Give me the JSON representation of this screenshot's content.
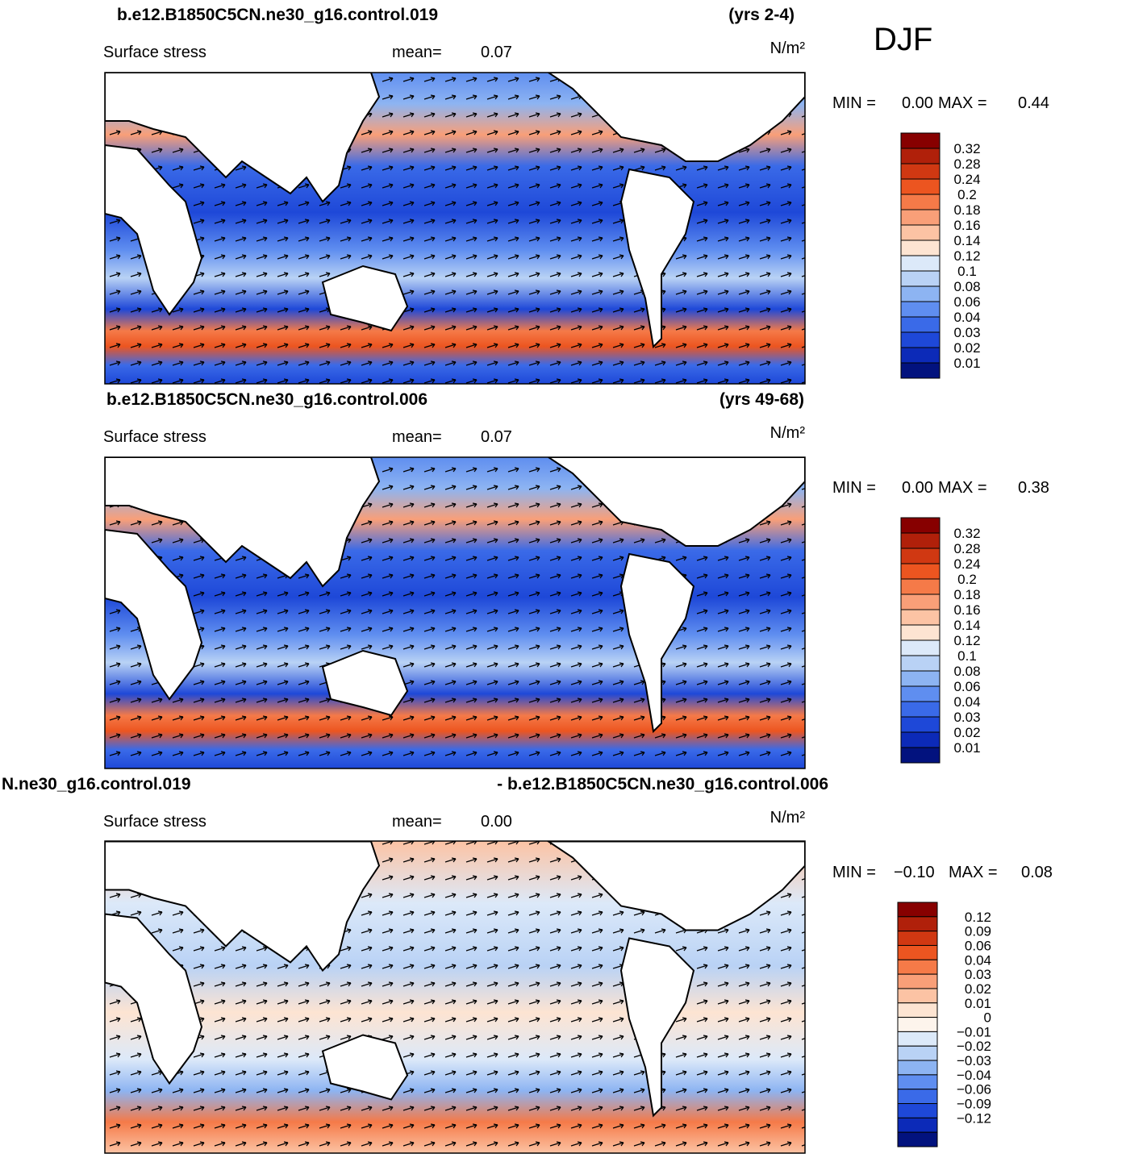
{
  "title": "DJF",
  "panels": [
    {
      "case": "b.e12.B1850C5CN.ne30_g16.control.019",
      "years": "(yrs 2-4)",
      "variable": "Surface stress",
      "mean_label": "mean=",
      "mean": "0.07",
      "units": "N/m²",
      "min_label": "MIN =",
      "min": "0.00",
      "max_label": "MAX =",
      "max": "0.44",
      "colorbar": {
        "labels": [
          "0.32",
          "0.28",
          "0.24",
          "0.2",
          "0.18",
          "0.16",
          "0.14",
          "0.12",
          "0.1",
          "0.08",
          "0.06",
          "0.04",
          "0.03",
          "0.02",
          "0.01"
        ],
        "colors": [
          "#870000",
          "#b0200a",
          "#d03812",
          "#ec5520",
          "#f57a48",
          "#f99f78",
          "#fcc3a4",
          "#fde4d2",
          "#dce9f9",
          "#b9d2f5",
          "#8db4f2",
          "#5f8ef0",
          "#3a6ae8",
          "#1e48d8",
          "#0c2ab8",
          "#02127e"
        ]
      }
    },
    {
      "case": "b.e12.B1850C5CN.ne30_g16.control.006",
      "years": "(yrs 49-68)",
      "variable": "Surface stress",
      "mean_label": "mean=",
      "mean": "0.07",
      "units": "N/m²",
      "min_label": "MIN =",
      "min": "0.00",
      "max_label": "MAX =",
      "max": "0.38",
      "colorbar": {
        "labels": [
          "0.32",
          "0.28",
          "0.24",
          "0.2",
          "0.18",
          "0.16",
          "0.14",
          "0.12",
          "0.1",
          "0.08",
          "0.06",
          "0.04",
          "0.03",
          "0.02",
          "0.01"
        ],
        "colors": [
          "#870000",
          "#b0200a",
          "#d03812",
          "#ec5520",
          "#f57a48",
          "#f99f78",
          "#fcc3a4",
          "#fde4d2",
          "#dce9f9",
          "#b9d2f5",
          "#8db4f2",
          "#5f8ef0",
          "#3a6ae8",
          "#1e48d8",
          "#0c2ab8",
          "#02127e"
        ]
      }
    },
    {
      "case": "N.ne30_g16.control.019",
      "years": "- b.e12.B1850C5CN.ne30_g16.control.006",
      "variable": "Surface stress",
      "mean_label": "mean=",
      "mean": "0.00",
      "units": "N/m²",
      "min_label": "MIN =",
      "min": "−0.10",
      "max_label": "MAX =",
      "max": "0.08",
      "colorbar": {
        "labels": [
          "0.12",
          "0.09",
          "0.06",
          "0.04",
          "0.03",
          "0.02",
          "0.01",
          "0",
          "−0.01",
          "−0.02",
          "−0.03",
          "−0.04",
          "−0.06",
          "−0.09",
          "−0.12"
        ],
        "colors": [
          "#870000",
          "#b0200a",
          "#d03812",
          "#ec5520",
          "#f57a48",
          "#f99f78",
          "#fcc3a4",
          "#fde4d2",
          "#fdf4ec",
          "#dce9f9",
          "#b9d2f5",
          "#8db4f2",
          "#5f8ef0",
          "#3a6ae8",
          "#1e48d8",
          "#0c2ab8",
          "#02127e"
        ]
      }
    }
  ]
}
